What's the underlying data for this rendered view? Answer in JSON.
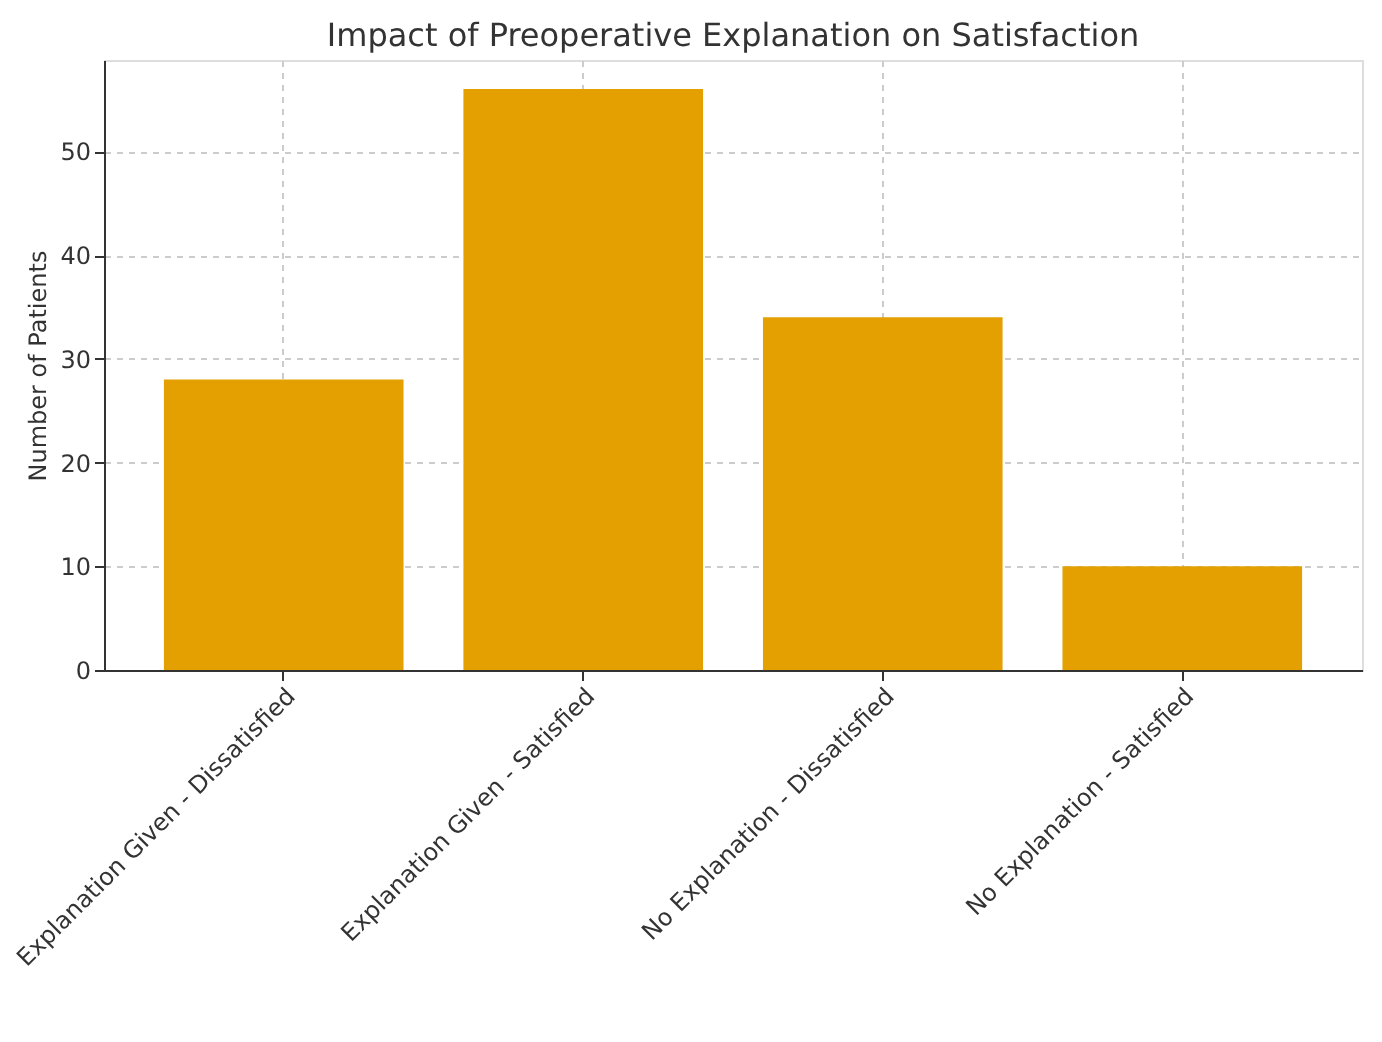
{
  "chart_data": {
    "type": "bar",
    "title": "Impact of Preoperative Explanation on Satisfaction",
    "ylabel": "Number of Patients",
    "categories": [
      "Explanation Given - Dissatisfied",
      "Explanation Given - Satisfied",
      "No Explanation - Dissatisfied",
      "No Explanation - Satisfied"
    ],
    "values": [
      28,
      56,
      34,
      10
    ],
    "color": "#e3a000",
    "ylim": [
      0,
      58.8
    ],
    "yticks": [
      0,
      10,
      20,
      30,
      40,
      50
    ],
    "grid": true
  }
}
